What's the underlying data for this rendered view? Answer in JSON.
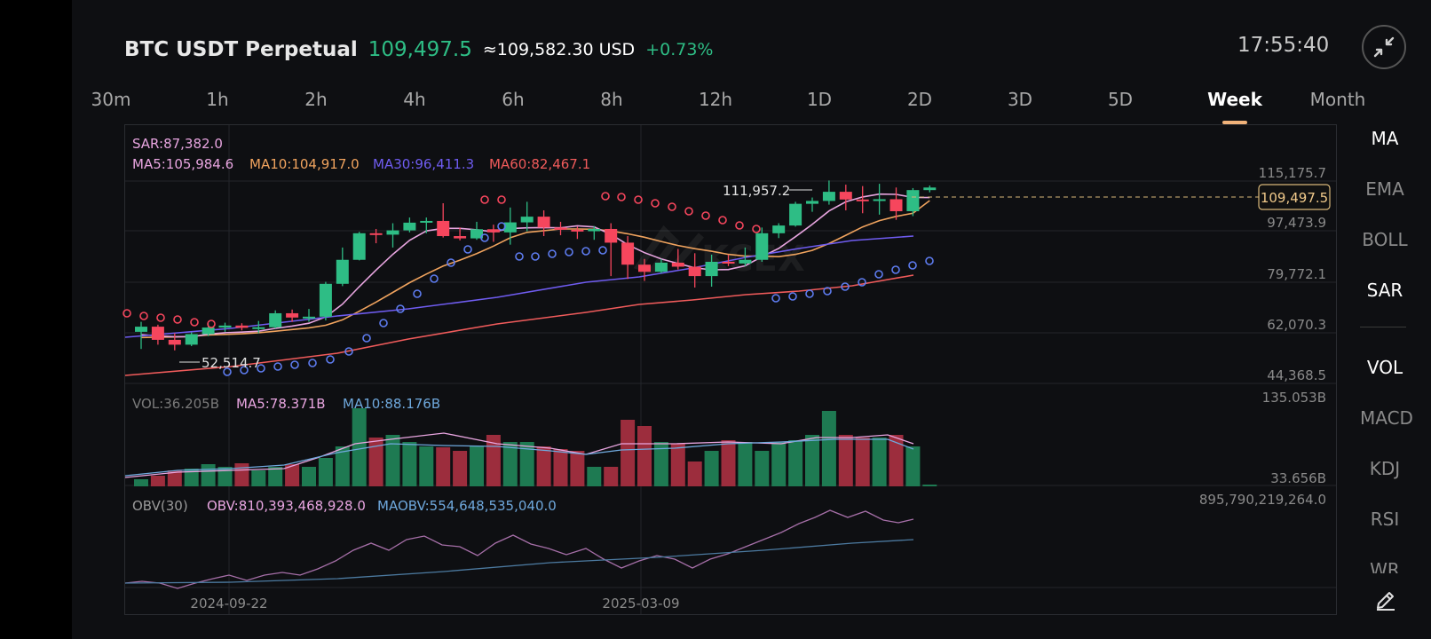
{
  "header": {
    "symbol": "BTC USDT Perpetual",
    "last_price": "109,497.5",
    "approx_usd": "≈109,582.30 USD",
    "change_pct": "+0.73%",
    "clock": "17:55:40"
  },
  "timeframes": [
    {
      "label": "30m"
    },
    {
      "label": "1h"
    },
    {
      "label": "2h"
    },
    {
      "label": "4h"
    },
    {
      "label": "6h"
    },
    {
      "label": "8h"
    },
    {
      "label": "12h"
    },
    {
      "label": "1D"
    },
    {
      "label": "2D"
    },
    {
      "label": "3D"
    },
    {
      "label": "5D"
    },
    {
      "label": "Week",
      "active": true
    },
    {
      "label": "Month"
    }
  ],
  "indicators_menu": [
    "MA",
    "EMA",
    "BOLL",
    "SAR",
    "VOL",
    "MACD",
    "KDJ",
    "RSI",
    "WR"
  ],
  "indicators_active": [
    "MA",
    "SAR",
    "VOL"
  ],
  "colors": {
    "up": "#2ebd85",
    "down": "#f6465d",
    "ma5": "#e8a5e0",
    "ma10": "#f0a35e",
    "ma30": "#6f5cf0",
    "ma60": "#f05b5b",
    "sar_up": "#5e7cf0",
    "sar_down": "#f6465d",
    "vol_ma5": "#e8a5e0",
    "vol_ma10": "#6fa8dc",
    "accent": "#f0b27a"
  },
  "main": {
    "sar_label": "SAR:87,382.0",
    "ma5_label": "MA5:105,984.6",
    "ma10_label": "MA10:104,917.0",
    "ma30_label": "MA30:96,411.3",
    "ma60_label": "MA60:82,467.1",
    "price_axis": [
      "115,175.7",
      "97,473.9",
      "79,772.1",
      "62,070.3",
      "44,368.5"
    ],
    "current_price_tag": "109,497.5",
    "high_marker": "111,957.2",
    "low_marker": "52,514.7"
  },
  "volume": {
    "vol_label": "VOL:36.205B",
    "ma5_label": "MA5:78.371B",
    "ma10_label": "MA10:88.176B",
    "axis_top": "135.053B",
    "axis_bottom": "33.656B"
  },
  "obv": {
    "title": "OBV(30)",
    "obv_label": "OBV:810,393,468,928.0",
    "maobv_label": "MAOBV:554,648,535,040.0",
    "axis_top": "895,790,219,264.0"
  },
  "date_axis": [
    "2024-09-22",
    "2025-03-09"
  ],
  "chart_data": {
    "type": "candlestick",
    "title": "",
    "ylim": [
      44368.5,
      115175.7
    ],
    "x_ticks": [
      "2024-09-22",
      "2025-03-09"
    ],
    "candles": [
      {
        "o": 59000,
        "h": 62500,
        "l": 53000,
        "c": 60800
      },
      {
        "o": 60800,
        "h": 61500,
        "l": 54500,
        "c": 56200
      },
      {
        "o": 56200,
        "h": 58500,
        "l": 52514.7,
        "c": 54500
      },
      {
        "o": 54500,
        "h": 58800,
        "l": 54000,
        "c": 58200
      },
      {
        "o": 58200,
        "h": 62000,
        "l": 57500,
        "c": 60500
      },
      {
        "o": 60500,
        "h": 62200,
        "l": 59000,
        "c": 61200
      },
      {
        "o": 61200,
        "h": 62000,
        "l": 59500,
        "c": 60400
      },
      {
        "o": 60400,
        "h": 62800,
        "l": 58500,
        "c": 60600
      },
      {
        "o": 60600,
        "h": 66500,
        "l": 60200,
        "c": 65500
      },
      {
        "o": 65500,
        "h": 66800,
        "l": 62500,
        "c": 64000
      },
      {
        "o": 64000,
        "h": 67000,
        "l": 62500,
        "c": 64300
      },
      {
        "o": 64300,
        "h": 76500,
        "l": 63000,
        "c": 75800
      },
      {
        "o": 75800,
        "h": 88500,
        "l": 75000,
        "c": 84200
      },
      {
        "o": 84200,
        "h": 94000,
        "l": 84000,
        "c": 93500
      },
      {
        "o": 93500,
        "h": 95000,
        "l": 90000,
        "c": 93000
      },
      {
        "o": 93000,
        "h": 97000,
        "l": 88500,
        "c": 94500
      },
      {
        "o": 94500,
        "h": 99000,
        "l": 93800,
        "c": 97200
      },
      {
        "o": 97200,
        "h": 99000,
        "l": 93500,
        "c": 97800
      },
      {
        "o": 97800,
        "h": 104000,
        "l": 92000,
        "c": 92500
      },
      {
        "o": 92500,
        "h": 95500,
        "l": 91000,
        "c": 91700
      },
      {
        "o": 91700,
        "h": 97500,
        "l": 91200,
        "c": 94900
      },
      {
        "o": 94900,
        "h": 96500,
        "l": 90500,
        "c": 93800
      },
      {
        "o": 93800,
        "h": 102500,
        "l": 89500,
        "c": 97300
      },
      {
        "o": 97300,
        "h": 104500,
        "l": 94200,
        "c": 99300
      },
      {
        "o": 99300,
        "h": 101500,
        "l": 92500,
        "c": 95500
      },
      {
        "o": 95500,
        "h": 97500,
        "l": 92800,
        "c": 94700
      },
      {
        "o": 94700,
        "h": 95800,
        "l": 91500,
        "c": 94200
      },
      {
        "o": 94200,
        "h": 96000,
        "l": 91200,
        "c": 95000
      },
      {
        "o": 95000,
        "h": 97000,
        "l": 78500,
        "c": 90200
      },
      {
        "o": 90200,
        "h": 92500,
        "l": 77500,
        "c": 82500
      },
      {
        "o": 82500,
        "h": 84500,
        "l": 76800,
        "c": 80000
      },
      {
        "o": 80000,
        "h": 84500,
        "l": 79500,
        "c": 83200
      },
      {
        "o": 83200,
        "h": 88000,
        "l": 80800,
        "c": 81800
      },
      {
        "o": 81800,
        "h": 86500,
        "l": 74500,
        "c": 78500
      },
      {
        "o": 78500,
        "h": 86000,
        "l": 74800,
        "c": 83500
      },
      {
        "o": 83500,
        "h": 86000,
        "l": 82000,
        "c": 82900
      },
      {
        "o": 82900,
        "h": 88500,
        "l": 82000,
        "c": 84200
      },
      {
        "o": 84200,
        "h": 95500,
        "l": 83500,
        "c": 93500
      },
      {
        "o": 93500,
        "h": 97000,
        "l": 91800,
        "c": 96200
      },
      {
        "o": 96200,
        "h": 104500,
        "l": 95800,
        "c": 103800
      },
      {
        "o": 103800,
        "h": 106000,
        "l": 101000,
        "c": 104800
      },
      {
        "o": 104800,
        "h": 111957.2,
        "l": 103500,
        "c": 108000
      },
      {
        "o": 108000,
        "h": 110500,
        "l": 101500,
        "c": 105300
      },
      {
        "o": 105300,
        "h": 110000,
        "l": 100500,
        "c": 105200
      },
      {
        "o": 105200,
        "h": 110800,
        "l": 100000,
        "c": 105400
      },
      {
        "o": 105400,
        "h": 109500,
        "l": 98200,
        "c": 101200
      },
      {
        "o": 101200,
        "h": 109300,
        "l": 99500,
        "c": 108600
      },
      {
        "o": 108600,
        "h": 110200,
        "l": 107800,
        "c": 109497.5
      }
    ],
    "ma5": [
      58000,
      57600,
      57300,
      57300,
      58200,
      58700,
      58900,
      59200,
      60200,
      61000,
      62000,
      64200,
      68700,
      74800,
      80600,
      86100,
      91000,
      94300,
      95200,
      95200,
      94700,
      94000,
      95100,
      95400,
      95500,
      95400,
      96100,
      95700,
      93100,
      89500,
      86700,
      84500,
      82900,
      81400,
      80700,
      80800,
      82100,
      85300,
      88200,
      92300,
      96600,
      101300,
      104500,
      106200,
      107200,
      107100,
      106000,
      105984.6
    ],
    "ma10": [
      57000,
      57100,
      57200,
      57400,
      57900,
      58100,
      58300,
      58700,
      59200,
      59800,
      60400,
      61300,
      63200,
      66200,
      69400,
      72800,
      76200,
      79200,
      82000,
      84100,
      86400,
      89000,
      91900,
      93800,
      94400,
      95000,
      95000,
      94900,
      94300,
      93300,
      92100,
      90600,
      89200,
      88100,
      87200,
      86100,
      85500,
      85500,
      85300,
      86100,
      87500,
      89900,
      92800,
      95700,
      97900,
      99400,
      100500,
      104917
    ]
  }
}
